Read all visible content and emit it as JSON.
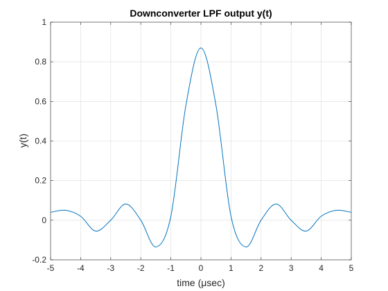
{
  "chart_data": {
    "type": "line",
    "title": "Downconverter LPF output y(t)",
    "xlabel": "time (μsec)",
    "ylabel": "y(t)",
    "xlim": [
      -5,
      5
    ],
    "ylim": [
      -0.2,
      1
    ],
    "xticks": [
      "-5",
      "-4",
      "-3",
      "-2",
      "-1",
      "0",
      "1",
      "2",
      "3",
      "4",
      "5"
    ],
    "yticks": [
      "-0.2",
      "0",
      "0.2",
      "0.4",
      "0.6",
      "0.8",
      "1"
    ],
    "grid": true,
    "series": [
      {
        "color": "#0072bd",
        "x": [
          -5,
          -4.5,
          -4,
          -3.5,
          -3,
          -2.5,
          -2,
          -1.5,
          -1,
          -0.5,
          0,
          0.5,
          1,
          1.5,
          2,
          2.5,
          3,
          3.5,
          4,
          4.5,
          5
        ],
        "y": [
          0.04,
          0.05,
          0.02,
          -0.055,
          0.0,
          0.082,
          0.0,
          -0.135,
          0.02,
          0.58,
          0.87,
          0.58,
          0.02,
          -0.135,
          0.0,
          0.082,
          0.0,
          -0.055,
          0.02,
          0.05,
          0.04
        ]
      }
    ]
  }
}
